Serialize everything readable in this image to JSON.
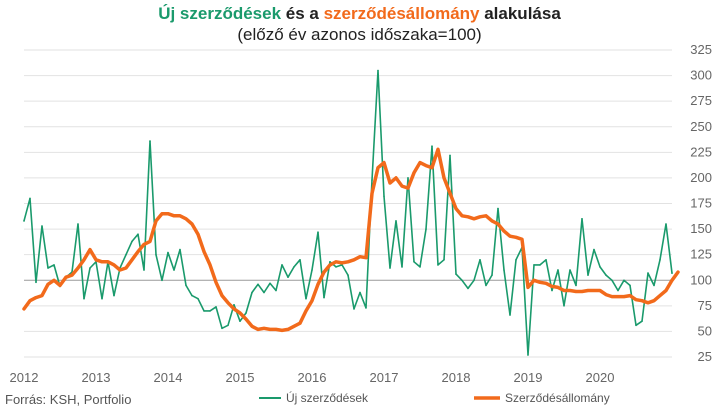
{
  "title": {
    "part1": "Új szerződések",
    "part2": " és a ",
    "part3": "szerződésállomány",
    "part4": " alakulása"
  },
  "subtitle": "(előző év azonos időszaka=100)",
  "source": "Forrás: KSH, Portfolio",
  "colors": {
    "new_contracts": "#1a9a6c",
    "portfolio": "#f26a1b",
    "grid": "#e2e2e2",
    "baseline": "#9a9a9a"
  },
  "chart_data": {
    "type": "line",
    "ylim": [
      25,
      325
    ],
    "yticks": [
      25,
      50,
      75,
      100,
      125,
      150,
      175,
      200,
      225,
      250,
      275,
      300,
      325
    ],
    "xlim": [
      2012,
      2021
    ],
    "xticks": [
      "2012",
      "2013",
      "2014",
      "2015",
      "2016",
      "2017",
      "2018",
      "2019",
      "2020"
    ],
    "baseline": 100,
    "grid": true,
    "legend_position": "bottom",
    "series": [
      {
        "name": "Új szerződések",
        "x_start": 2012.0,
        "x_step": 0.08333,
        "values": [
          158,
          180,
          98,
          153,
          112,
          115,
          94,
          103,
          108,
          155,
          82,
          112,
          118,
          82,
          118,
          85,
          112,
          125,
          138,
          145,
          110,
          236,
          125,
          100,
          127,
          110,
          130,
          95,
          85,
          82,
          70,
          70,
          74,
          53,
          56,
          76,
          60,
          68,
          88,
          96,
          88,
          97,
          90,
          115,
          103,
          113,
          120,
          82,
          110,
          147,
          83,
          118,
          113,
          115,
          105,
          72,
          88,
          73,
          198,
          305,
          182,
          112,
          158,
          113,
          200,
          118,
          113,
          150,
          231,
          115,
          120,
          222,
          106,
          100,
          92,
          100,
          120,
          95,
          105,
          170,
          110,
          66,
          120,
          132,
          27,
          115,
          115,
          120,
          90,
          110,
          75,
          110,
          95,
          160,
          105,
          130,
          113,
          105,
          100,
          90,
          100,
          95,
          56,
          60,
          107,
          95,
          120,
          155,
          107
        ]
      },
      {
        "name": "Szerződésállomány",
        "x_start": 2012.0,
        "x_step": 0.08333,
        "values": [
          72,
          80,
          83,
          85,
          96,
          100,
          95,
          103,
          105,
          112,
          120,
          130,
          120,
          118,
          118,
          115,
          110,
          112,
          120,
          128,
          135,
          138,
          158,
          165,
          165,
          163,
          163,
          160,
          155,
          145,
          128,
          115,
          98,
          85,
          78,
          72,
          68,
          62,
          55,
          52,
          53,
          52,
          52,
          51,
          52,
          55,
          58,
          70,
          80,
          96,
          108,
          115,
          118,
          117,
          118,
          120,
          123,
          122,
          185,
          210,
          215,
          195,
          200,
          192,
          190,
          205,
          215,
          212,
          210,
          228,
          200,
          185,
          170,
          163,
          162,
          160,
          162,
          163,
          158,
          155,
          148,
          143,
          142,
          140,
          93,
          100,
          98,
          97,
          94,
          93,
          90,
          90,
          89,
          89,
          90,
          90,
          90,
          86,
          84,
          84,
          84,
          85,
          81,
          80,
          78,
          80,
          85,
          90,
          100,
          108
        ]
      }
    ]
  }
}
